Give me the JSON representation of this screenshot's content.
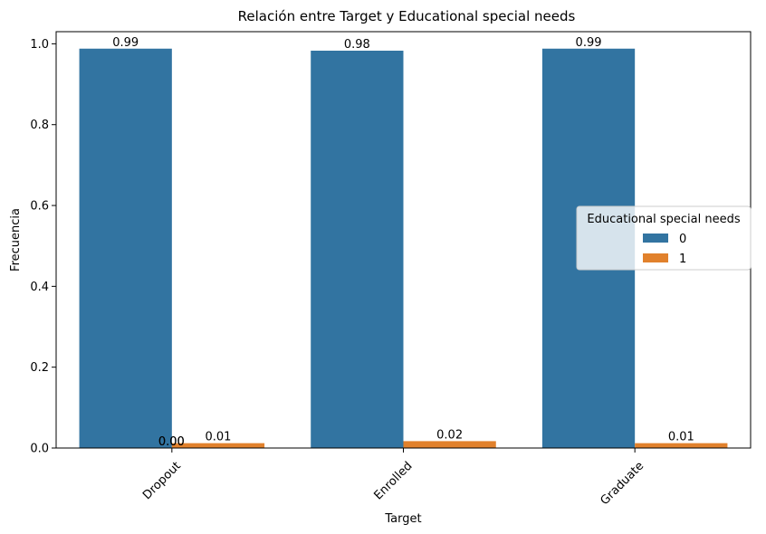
{
  "chart_data": {
    "type": "bar",
    "title": "Relación entre Target y Educational special needs",
    "xlabel": "Target",
    "ylabel": "Frecuencia",
    "categories": [
      "Dropout",
      "Enrolled",
      "Graduate"
    ],
    "ylim": [
      0,
      1.03
    ],
    "yticks": [
      "0.0",
      "0.2",
      "0.4",
      "0.6",
      "0.8",
      "1.0"
    ],
    "ytick_values": [
      0,
      0.2,
      0.4,
      0.6,
      0.8,
      1.0
    ],
    "grid": false,
    "legend": {
      "title": "Educational special needs",
      "placement": "center-right"
    },
    "series": [
      {
        "name": "0",
        "color": "#3274a1",
        "values": [
          0.988,
          0.983,
          0.988
        ],
        "labels": [
          "0.99",
          "0.98",
          "0.99"
        ]
      },
      {
        "name": "1",
        "color": "#e1812c",
        "values": [
          0.012,
          0.017,
          0.012
        ],
        "labels": [
          "0.01",
          "0.02",
          "0.01"
        ]
      }
    ],
    "annotations": [
      {
        "category": "Dropout",
        "text": "0.00"
      },
      {
        "category": "Dropout",
        "text": "0.00"
      }
    ]
  }
}
